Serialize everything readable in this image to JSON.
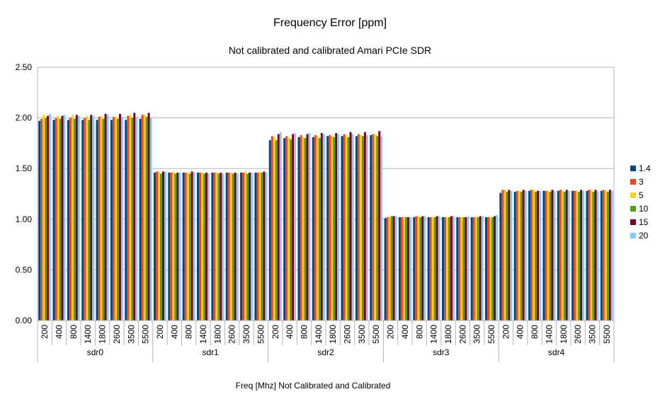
{
  "chart_data": {
    "type": "bar",
    "title": "Frequency Error [ppm]",
    "subtitle": "Not calibrated and calibrated Amari PCIe SDR",
    "xlabel": "Freq [Mhz] Not Calibrated and Calibrated",
    "ylabel": "",
    "ylim": [
      0,
      2.5
    ],
    "yticks": [
      "0.00",
      "0.50",
      "1.00",
      "1.50",
      "2.00",
      "2.50"
    ],
    "grid": true,
    "legend_position": "right",
    "groups": [
      "sdr0",
      "sdr1",
      "sdr2",
      "sdr3",
      "sdr4"
    ],
    "frequencies": [
      "200",
      "400",
      "800",
      "1400",
      "1800",
      "2600",
      "3500",
      "5500"
    ],
    "series": [
      {
        "name": "1.4",
        "color": "#004586",
        "values": [
          1.97,
          1.98,
          1.98,
          1.98,
          1.98,
          1.98,
          1.98,
          1.99,
          1.46,
          1.46,
          1.46,
          1.46,
          1.46,
          1.46,
          1.46,
          1.46,
          1.78,
          1.8,
          1.81,
          1.81,
          1.82,
          1.82,
          1.82,
          1.83,
          1.01,
          1.02,
          1.02,
          1.02,
          1.02,
          1.02,
          1.02,
          1.02,
          1.26,
          1.27,
          1.28,
          1.28,
          1.28,
          1.28,
          1.28,
          1.28
        ]
      },
      {
        "name": "3",
        "color": "#ff420e",
        "values": [
          1.99,
          2.0,
          2.0,
          2.0,
          2.01,
          2.01,
          2.02,
          2.03,
          1.47,
          1.46,
          1.46,
          1.46,
          1.46,
          1.46,
          1.46,
          1.46,
          1.82,
          1.82,
          1.83,
          1.83,
          1.83,
          1.84,
          1.84,
          1.84,
          1.02,
          1.02,
          1.03,
          1.02,
          1.02,
          1.02,
          1.02,
          1.02,
          1.29,
          1.28,
          1.29,
          1.28,
          1.29,
          1.28,
          1.29,
          1.29
        ]
      },
      {
        "name": "5",
        "color": "#ffd320",
        "values": [
          2.03,
          2.02,
          2.03,
          2.02,
          2.02,
          2.01,
          2.03,
          2.03,
          1.47,
          1.47,
          1.46,
          1.46,
          1.46,
          1.46,
          1.47,
          1.47,
          1.81,
          1.81,
          1.81,
          1.82,
          1.82,
          1.83,
          1.83,
          1.84,
          1.02,
          1.02,
          1.03,
          1.02,
          1.02,
          1.02,
          1.02,
          1.02,
          1.29,
          1.28,
          1.29,
          1.28,
          1.28,
          1.28,
          1.29,
          1.28
        ]
      },
      {
        "name": "10",
        "color": "#579d1c",
        "values": [
          2.0,
          1.99,
          1.99,
          1.98,
          1.99,
          1.99,
          2.0,
          2.01,
          1.45,
          1.45,
          1.45,
          1.45,
          1.45,
          1.45,
          1.45,
          1.46,
          1.78,
          1.79,
          1.8,
          1.8,
          1.81,
          1.81,
          1.82,
          1.82,
          1.03,
          1.02,
          1.02,
          1.02,
          1.02,
          1.02,
          1.02,
          1.02,
          1.27,
          1.27,
          1.27,
          1.27,
          1.27,
          1.27,
          1.27,
          1.27
        ]
      },
      {
        "name": "15",
        "color": "#7e0021",
        "values": [
          2.02,
          2.02,
          2.03,
          2.03,
          2.04,
          2.04,
          2.05,
          2.05,
          1.47,
          1.46,
          1.47,
          1.46,
          1.46,
          1.46,
          1.46,
          1.47,
          1.84,
          1.84,
          1.84,
          1.85,
          1.85,
          1.86,
          1.86,
          1.87,
          1.03,
          1.02,
          1.03,
          1.03,
          1.03,
          1.02,
          1.03,
          1.03,
          1.29,
          1.29,
          1.28,
          1.29,
          1.29,
          1.29,
          1.29,
          1.29
        ]
      },
      {
        "name": "20",
        "color": "#83caff",
        "values": [
          2.04,
          2.03,
          2.02,
          2.02,
          2.03,
          2.01,
          2.01,
          2.0,
          1.47,
          1.46,
          1.46,
          1.45,
          1.45,
          1.45,
          1.46,
          1.46,
          1.86,
          1.85,
          1.85,
          1.84,
          1.84,
          1.84,
          1.83,
          1.82,
          1.03,
          1.02,
          1.03,
          1.03,
          1.03,
          1.03,
          1.03,
          1.04,
          1.28,
          1.28,
          1.28,
          1.28,
          1.28,
          1.28,
          1.28,
          1.28
        ]
      }
    ]
  }
}
